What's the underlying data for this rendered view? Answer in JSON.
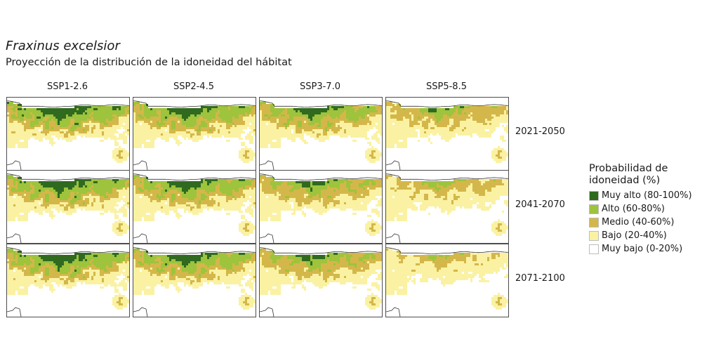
{
  "title": "Fraxinus excelsior",
  "subtitle": "Proyección de la distribución de la idoneidad del hábitat",
  "chart_data": {
    "type": "heatmap",
    "title": "Fraxinus excelsior",
    "subtitle": "Proyección de la distribución de la idoneidad del hábitat",
    "columns": [
      "SSP1-2.6",
      "SSP2-4.5",
      "SSP3-7.0",
      "SSP5-8.5"
    ],
    "rows": [
      "2021-2050",
      "2041-2070",
      "2071-2100"
    ],
    "legend": {
      "title": "Probabilidad de idoneidad (%)",
      "placement": "right",
      "classes": [
        {
          "label": "Muy alto (80-100%)",
          "color": "#2f6a1f"
        },
        {
          "label": "Alto (60-80%)",
          "color": "#9ec33c"
        },
        {
          "label": "Medio (40-60%)",
          "color": "#d4b74a"
        },
        {
          "label": "Bajo (20-40%)",
          "color": "#faf2a2"
        },
        {
          "label": "Muy bajo (0-20%)",
          "color": "#ffffff"
        }
      ]
    },
    "panel_intensity": [
      [
        0.95,
        0.85,
        0.75,
        0.45
      ],
      [
        0.92,
        0.82,
        0.62,
        0.3
      ],
      [
        0.92,
        0.82,
        0.62,
        0.15
      ]
    ]
  }
}
